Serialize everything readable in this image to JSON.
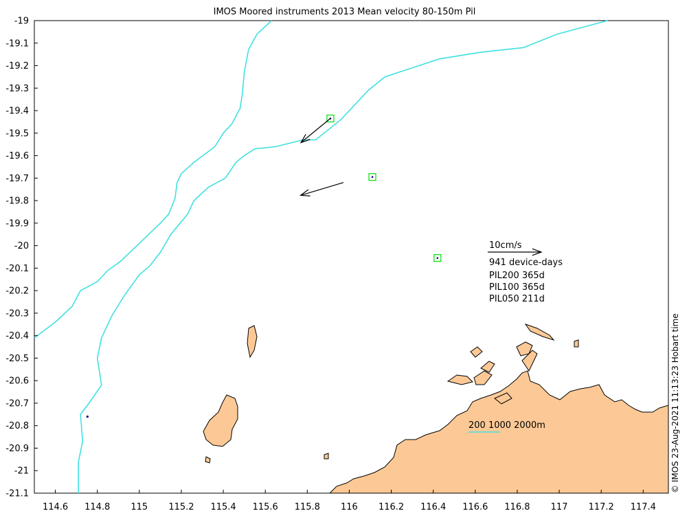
{
  "title": "IMOS Moored instruments 2013 Mean velocity 80-150m Pil",
  "side_note": "© IMOS 23-Aug-2021 11:13:23 Hobart time",
  "axes": {
    "x_ticks": [
      114.6,
      114.8,
      115,
      115.2,
      115.4,
      115.6,
      115.8,
      116,
      116.2,
      116.4,
      116.6,
      116.8,
      117,
      117.2,
      117.4
    ],
    "y_ticks": [
      -19,
      -19.1,
      -19.2,
      -19.3,
      -19.4,
      -19.5,
      -19.6,
      -19.7,
      -19.8,
      -19.9,
      -20,
      -20.1,
      -20.2,
      -20.3,
      -20.4,
      -20.5,
      -20.6,
      -20.7,
      -20.8,
      -20.9,
      -21,
      -21.1
    ],
    "xlim": [
      114.5,
      117.52
    ],
    "ylim": [
      -21.1,
      -19
    ]
  },
  "legend": {
    "scale_label": "10cm/s",
    "device_days": "941 device-days",
    "moorings": [
      "PIL200 365d",
      "PIL100 365d",
      "PIL050 211d"
    ],
    "isobath_label": "200 1000 2000m"
  },
  "moorings": [
    {
      "name": "PIL200",
      "lon": 115.91,
      "lat": -19.435,
      "u_cms": -5.5,
      "v_cms": -4.5
    },
    {
      "name": "PIL100",
      "lon": 116.11,
      "lat": -19.695,
      "u_cms": -8.0,
      "v_cms": -2.4
    },
    {
      "name": "PIL050",
      "lon": 116.42,
      "lat": -20.055,
      "u_cms": 0,
      "v_cms": 0
    }
  ],
  "isobaths": [
    {
      "depth": "200m",
      "points": [
        [
          115.63,
          -19.0
        ],
        [
          115.56,
          -19.06
        ],
        [
          115.52,
          -19.13
        ],
        [
          115.5,
          -19.23
        ],
        [
          115.49,
          -19.33
        ],
        [
          115.48,
          -19.39
        ],
        [
          115.44,
          -19.46
        ],
        [
          115.4,
          -19.5
        ],
        [
          115.36,
          -19.56
        ],
        [
          115.26,
          -19.63
        ],
        [
          115.2,
          -19.68
        ],
        [
          115.18,
          -19.72
        ],
        [
          115.17,
          -19.79
        ],
        [
          115.14,
          -19.86
        ],
        [
          115.1,
          -19.9
        ],
        [
          115.0,
          -19.99
        ],
        [
          114.91,
          -20.07
        ],
        [
          114.85,
          -20.11
        ],
        [
          114.8,
          -20.16
        ],
        [
          114.72,
          -20.2
        ],
        [
          114.68,
          -20.27
        ],
        [
          114.6,
          -20.34
        ],
        [
          114.5,
          -20.41
        ]
      ],
      "color": "#40e0e0"
    },
    {
      "name": "1000m",
      "depth": "1000m",
      "points": [
        [
          117.23,
          -19.0
        ],
        [
          116.99,
          -19.06
        ],
        [
          116.83,
          -19.12
        ],
        [
          116.63,
          -19.14
        ],
        [
          116.43,
          -19.17
        ],
        [
          116.3,
          -19.21
        ],
        [
          116.17,
          -19.25
        ],
        [
          116.09,
          -19.31
        ],
        [
          115.96,
          -19.44
        ],
        [
          115.84,
          -19.53
        ],
        [
          115.78,
          -19.53
        ],
        [
          115.65,
          -19.56
        ],
        [
          115.55,
          -19.57
        ],
        [
          115.5,
          -19.6
        ],
        [
          115.46,
          -19.63
        ],
        [
          115.41,
          -19.7
        ],
        [
          115.33,
          -19.74
        ],
        [
          115.26,
          -19.8
        ],
        [
          115.23,
          -19.86
        ],
        [
          115.15,
          -19.95
        ],
        [
          115.1,
          -20.03
        ],
        [
          115.05,
          -20.09
        ],
        [
          115.0,
          -20.13
        ],
        [
          114.93,
          -20.22
        ],
        [
          114.87,
          -20.31
        ],
        [
          114.82,
          -20.41
        ],
        [
          114.8,
          -20.5
        ],
        [
          114.82,
          -20.62
        ],
        [
          114.76,
          -20.7
        ],
        [
          114.72,
          -20.75
        ],
        [
          114.73,
          -20.87
        ],
        [
          114.71,
          -20.96
        ],
        [
          114.71,
          -21.1
        ]
      ],
      "color": "#40e0e0"
    }
  ],
  "colors": {
    "land": "#fcc996",
    "isobath": "#40e0e0",
    "mooring_box": "#00dd00",
    "mooring_dot": "#000080"
  }
}
